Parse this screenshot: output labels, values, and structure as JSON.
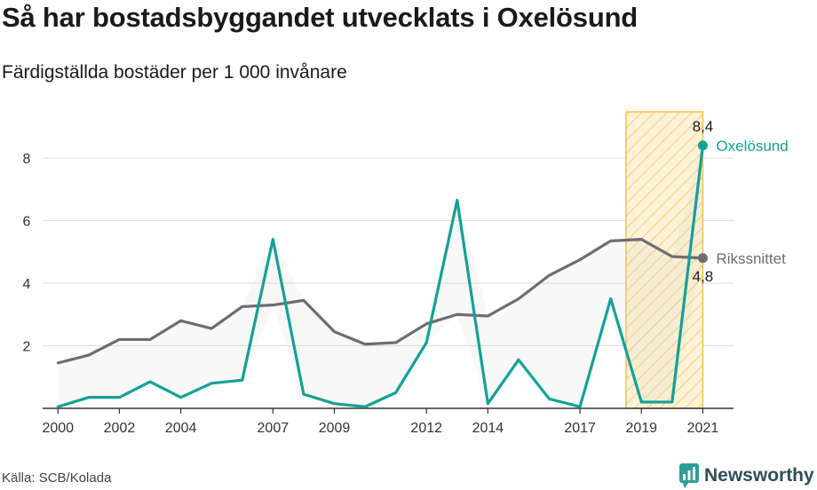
{
  "title": "Så har bostadsbyggandet utvecklats i Oxelösund",
  "subtitle": "Färdigställda bostäder per 1 000 invånare",
  "source": "Källa: SCB/Kolada",
  "brand": "Newsworthy",
  "colors": {
    "oxelosund": "#14a196",
    "riket": "#6e6c72",
    "highlight": "#f5c242",
    "grid": "#dddddd",
    "brand": "#2e4f5a"
  },
  "chart_data": {
    "type": "line",
    "x": [
      2000,
      2001,
      2002,
      2003,
      2004,
      2005,
      2006,
      2007,
      2008,
      2009,
      2010,
      2011,
      2012,
      2013,
      2014,
      2015,
      2016,
      2017,
      2018,
      2019,
      2020,
      2021
    ],
    "xticks": [
      2000,
      2002,
      2004,
      2007,
      2009,
      2012,
      2014,
      2017,
      2019,
      2021
    ],
    "xtick_labels": [
      "2000",
      "2002",
      "2004",
      "2007",
      "2009",
      "2012",
      "2014",
      "2017",
      "2019",
      "2021"
    ],
    "yticks": [
      2,
      4,
      6,
      8
    ],
    "ytick_labels": [
      "2",
      "4",
      "6",
      "8"
    ],
    "ylim": [
      0,
      9.7
    ],
    "xlim": [
      1999.5,
      2022
    ],
    "grid": true,
    "highlight_range": [
      2018.5,
      2021
    ],
    "series": [
      {
        "name": "Oxelösund",
        "key": "oxelosund",
        "values": [
          0.05,
          0.35,
          0.35,
          0.85,
          0.35,
          0.8,
          0.9,
          5.4,
          0.45,
          0.15,
          0.05,
          0.5,
          2.1,
          6.65,
          0.15,
          1.55,
          0.3,
          0.05,
          3.5,
          0.2,
          0.2,
          8.4
        ],
        "end_label": "8,4"
      },
      {
        "name": "Rikssnittet",
        "key": "riket",
        "values": [
          1.45,
          1.7,
          2.2,
          2.2,
          2.8,
          2.55,
          3.25,
          3.3,
          3.45,
          2.45,
          2.05,
          2.1,
          2.7,
          3.0,
          2.95,
          3.5,
          4.25,
          4.75,
          5.35,
          5.4,
          4.85,
          4.8
        ],
        "end_label": "4,8"
      }
    ]
  }
}
